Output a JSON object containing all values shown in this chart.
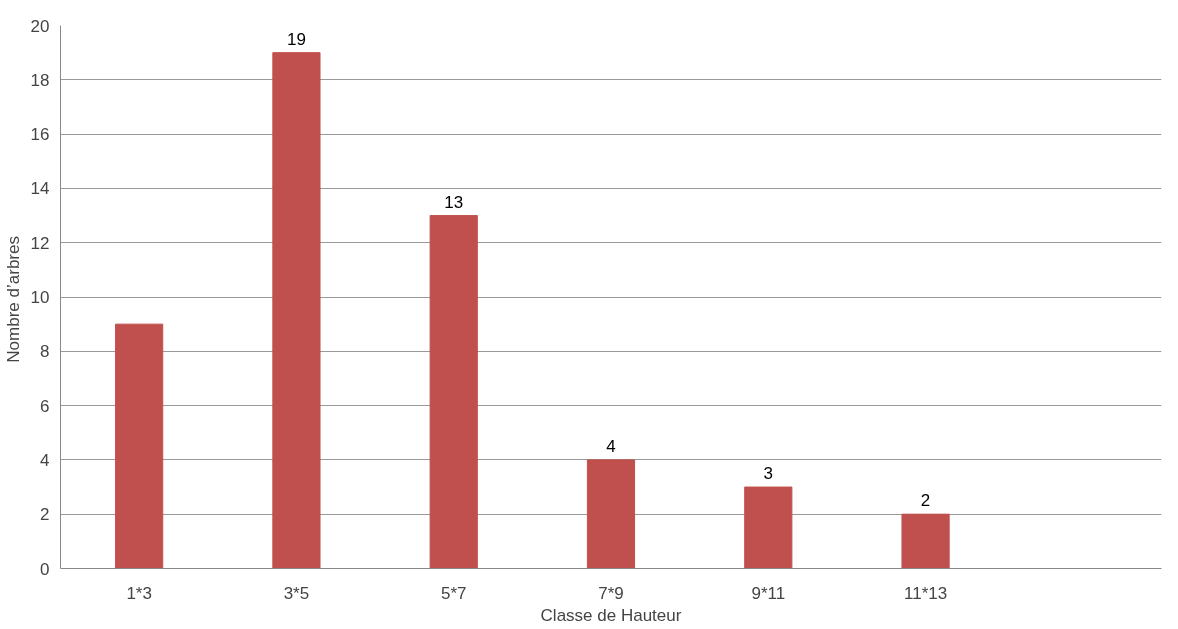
{
  "chart_data": {
    "type": "bar",
    "xlabel": "Classe de Hauteur",
    "ylabel": "Nombre  d’arbres",
    "categories": [
      "1*3",
      "3*5",
      "5*7",
      "7*9",
      "9*11",
      "11*13",
      null
    ],
    "values": [
      9,
      19,
      13,
      4,
      3,
      2,
      null
    ],
    "value_labels": [
      null,
      "19",
      "13",
      "4",
      "3",
      "2",
      null
    ],
    "color": "#c0504d",
    "ylim": [
      0,
      20
    ],
    "yticks": [
      0,
      2,
      4,
      6,
      8,
      10,
      12,
      14,
      16,
      18,
      20
    ],
    "grid": "y"
  }
}
